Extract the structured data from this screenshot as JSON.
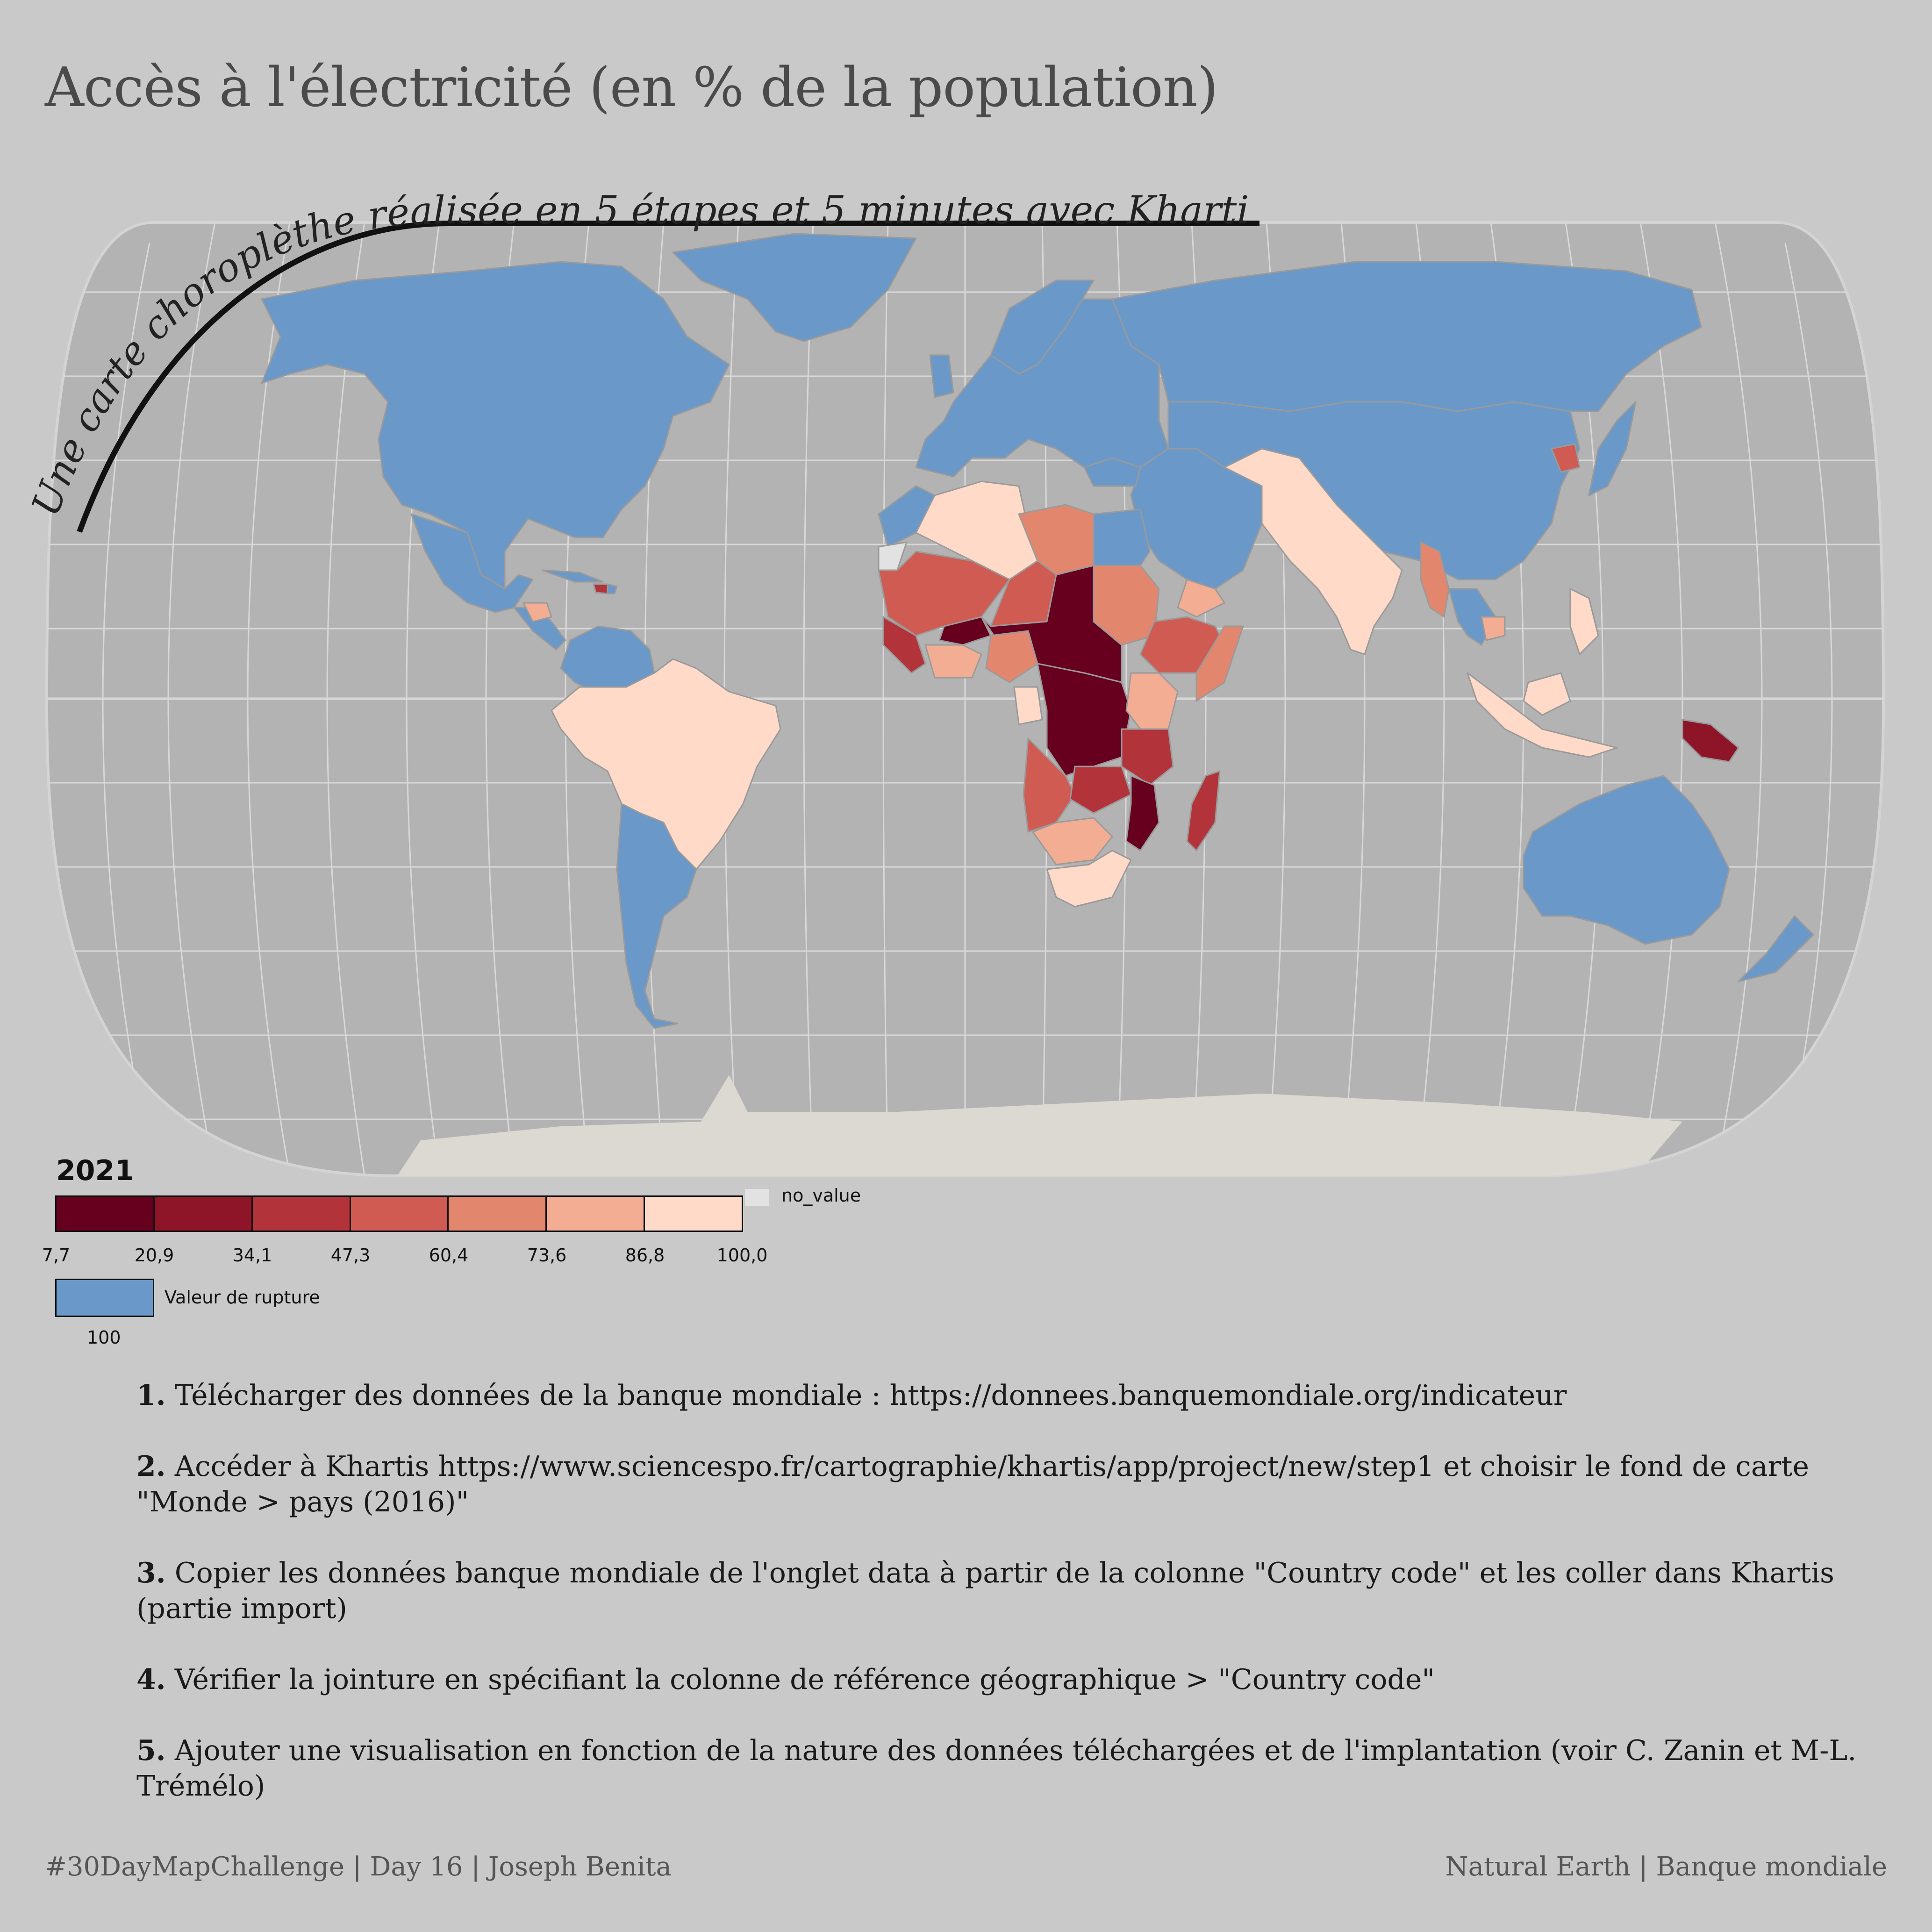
{
  "title": "Accès à l'électricité (en % de la population)",
  "subtitle": "Une carte choroplèthe réalisée en 5 étapes et 5 minutes avec Khartis",
  "legend": {
    "year": "2021",
    "classes": [
      {
        "color": "#67001f"
      },
      {
        "color": "#8e1428"
      },
      {
        "color": "#b2343a"
      },
      {
        "color": "#cf5b52"
      },
      {
        "color": "#e3866e"
      },
      {
        "color": "#f3ad93"
      },
      {
        "color": "#ffdac8"
      }
    ],
    "breaks": [
      "7,7",
      "20,9",
      "34,1",
      "47,3",
      "60,4",
      "73,6",
      "86,8",
      "100,0"
    ],
    "no_value_label": "no_value",
    "no_value_color": "#e2e2e2",
    "rupture_label": "Valeur de rupture",
    "rupture_value": "100",
    "rupture_color": "#6a98c9"
  },
  "steps": [
    {
      "num": "1.",
      "text": " Télécharger des données de la banque mondiale : https://donnees.banquemondiale.org/indicateur"
    },
    {
      "num": "2.",
      "text": " Accéder à Khartis https://www.sciencespo.fr/cartographie/khartis/app/project/new/step1 et choisir le fond de carte \"Monde > pays (2016)\""
    },
    {
      "num": "3.",
      "text": " Copier les données banque mondiale de l'onglet data à partir de la colonne \"Country code\" et les coller dans Khartis (partie import)"
    },
    {
      "num": "4.",
      "text": " Vérifier la jointure en spécifiant la colonne de référence géographique > \"Country code\""
    },
    {
      "num": "5.",
      "text": " Ajouter une visualisation en fonction de la nature des données téléchargées et de l'implantation (voir C. Zanin et M-L. Trémélo)"
    }
  ],
  "footer": {
    "left": "#30DayMapChallenge | Day 16 | Joseph Benita",
    "right": "Natural Earth | Banque mondiale"
  },
  "map_colors": {
    "ocean": "#b3b3b3",
    "graticule": "#d8d8d8",
    "antarctica": "#dcd9d2",
    "border": "#9a9a9a"
  }
}
